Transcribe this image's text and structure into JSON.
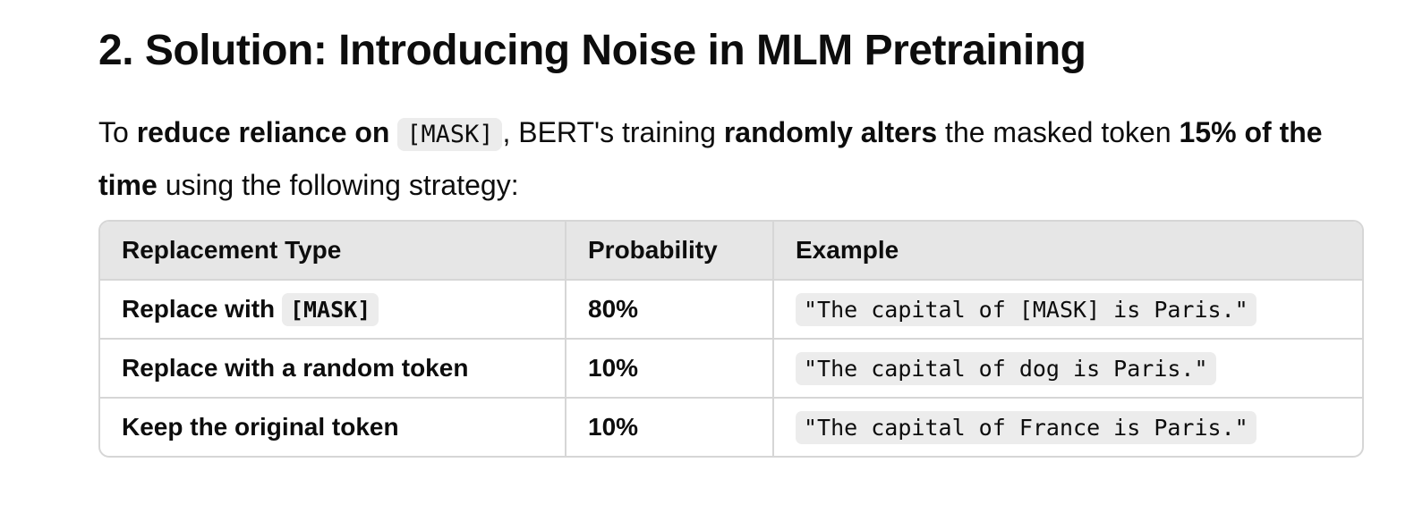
{
  "section": {
    "title": "2. Solution: Introducing Noise in MLM Pretraining"
  },
  "intro": {
    "t1": "To ",
    "b1": "reduce reliance on",
    "code1": "[MASK]",
    "t2": ", BERT's training ",
    "b2": "randomly alters",
    "t3": " the masked token ",
    "b3": "15% of the time",
    "t4": " using the following strategy:"
  },
  "table": {
    "headers": [
      "Replacement Type",
      "Probability",
      "Example"
    ],
    "rows": [
      {
        "type": "Replace with",
        "type_code": "[MASK]",
        "probability": "80%",
        "example": "\"The capital of [MASK] is Paris.\""
      },
      {
        "type": "Replace with a random token",
        "probability": "10%",
        "example": "\"The capital of dog is Paris.\""
      },
      {
        "type": "Keep the original token",
        "probability": "10%",
        "example": "\"The capital of France is Paris.\""
      }
    ]
  }
}
